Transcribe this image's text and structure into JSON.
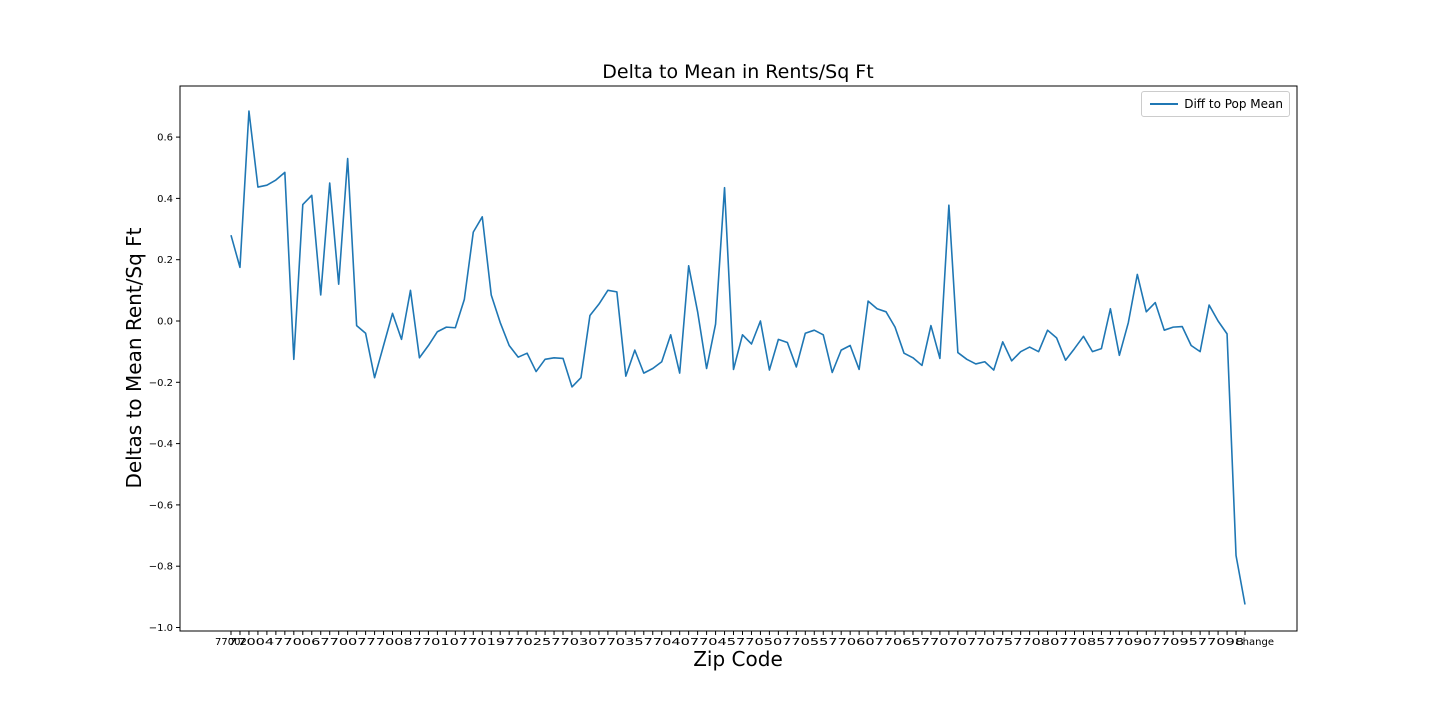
{
  "chart_data": {
    "type": "line",
    "title": "Delta to Mean in Rents/Sq Ft",
    "xlabel": "Zip Code",
    "ylabel": "Deltas to Mean Rent/Sq Ft",
    "ylim": [
      -1.0,
      0.75
    ],
    "yticks": [
      -1.0,
      -0.8,
      -0.6,
      -0.4,
      -0.2,
      0.0,
      0.2,
      0.4,
      0.6
    ],
    "ytick_labels": [
      "−1.0",
      "−0.8",
      "−0.6",
      "−0.4",
      "−0.2",
      "0.0",
      "0.2",
      "0.4",
      "0.6"
    ],
    "x_tick_labels_legible": [
      "77002",
      "Change"
    ],
    "x_tick_labels_note": "x tick labels are overlapping zip codes and are illegible except the first and last",
    "grid": false,
    "legend_position": "top-right",
    "series": [
      {
        "name": "Diff to Pop Mean",
        "color": "#1f77b4",
        "values": [
          0.28,
          0.175,
          0.685,
          0.437,
          0.443,
          0.46,
          0.485,
          -0.125,
          0.38,
          0.41,
          0.085,
          0.45,
          0.12,
          0.53,
          -0.015,
          -0.04,
          -0.185,
          -0.08,
          0.025,
          -0.06,
          0.1,
          -0.12,
          -0.08,
          -0.035,
          -0.02,
          -0.022,
          0.07,
          0.29,
          0.34,
          0.085,
          -0.005,
          -0.08,
          -0.118,
          -0.105,
          -0.165,
          -0.125,
          -0.12,
          -0.122,
          -0.215,
          -0.185,
          0.018,
          0.055,
          0.1,
          0.095,
          -0.18,
          -0.095,
          -0.17,
          -0.155,
          -0.133,
          -0.045,
          -0.17,
          0.18,
          0.03,
          -0.155,
          -0.01,
          0.435,
          -0.158,
          -0.045,
          -0.075,
          0.0,
          -0.16,
          -0.06,
          -0.07,
          -0.15,
          -0.04,
          -0.03,
          -0.045,
          -0.168,
          -0.095,
          -0.08,
          -0.158,
          0.065,
          0.04,
          0.03,
          -0.02,
          -0.105,
          -0.12,
          -0.145,
          -0.015,
          -0.122,
          0.378,
          -0.103,
          -0.125,
          -0.14,
          -0.133,
          -0.16,
          -0.068,
          -0.13,
          -0.1,
          -0.085,
          -0.1,
          -0.03,
          -0.055,
          -0.128,
          -0.09,
          -0.05,
          -0.1,
          -0.09,
          0.04,
          -0.112,
          -0.005,
          0.152,
          0.03,
          0.06,
          -0.03,
          -0.02,
          -0.018,
          -0.08,
          -0.1,
          0.052,
          0.0,
          -0.042,
          -0.765,
          -0.925
        ]
      }
    ]
  }
}
